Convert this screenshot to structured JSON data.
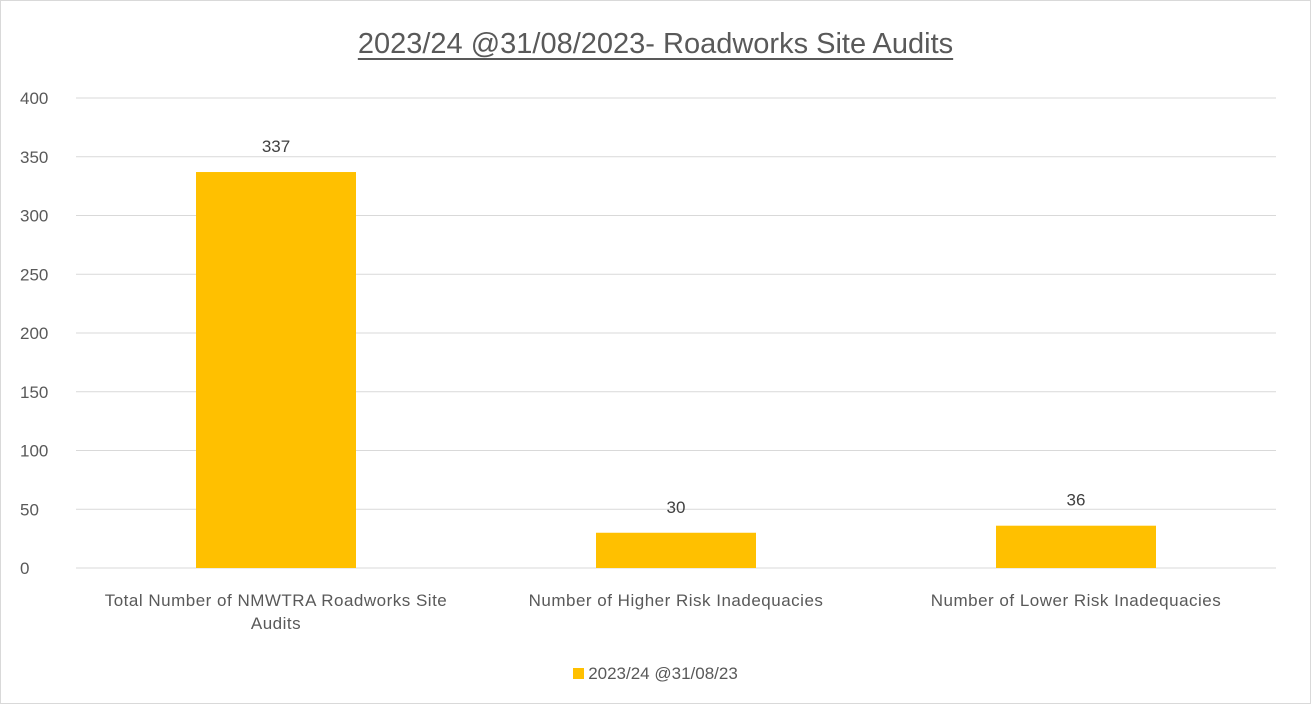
{
  "chart_data": {
    "type": "bar",
    "title": "2023/24 @31/08/2023- Roadworks Site Audits",
    "categories": [
      "Total Number of NMWTRA Roadworks Site Audits",
      "Number of Higher Risk Inadequacies",
      "Number of Lower Risk Inadequacies"
    ],
    "category_lines": [
      [
        "Total Number of NMWTRA Roadworks Site",
        "Audits"
      ],
      [
        "Number of Higher Risk Inadequacies"
      ],
      [
        "Number of Lower Risk Inadequacies"
      ]
    ],
    "series": [
      {
        "name": "2023/24 @31/08/23",
        "values": [
          337,
          30,
          36
        ],
        "color": "#FFC000"
      }
    ],
    "data_labels": [
      "337",
      "30",
      "36"
    ],
    "ylim": [
      0,
      400
    ],
    "y_ticks": [
      0,
      50,
      100,
      150,
      200,
      250,
      300,
      350,
      400
    ],
    "xlabel": "",
    "ylabel": "",
    "grid": true,
    "legend_position": "bottom",
    "colors": {
      "gridline": "#d9d9d9",
      "text": "#595959",
      "bar": "#FFC000"
    }
  }
}
